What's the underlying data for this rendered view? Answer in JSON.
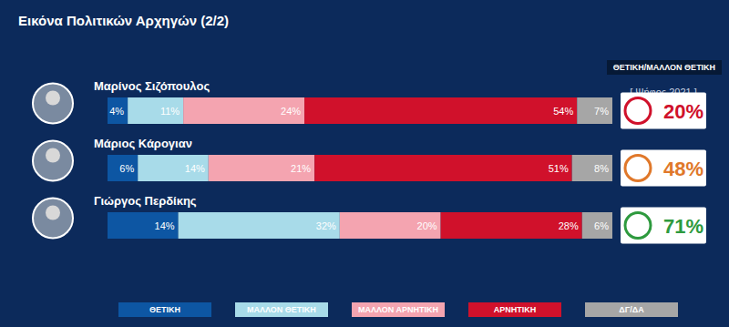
{
  "chart_data": {
    "type": "bar",
    "title": "Εικόνα Πολιτικών Αρχηγών (2/2)",
    "orientation": "horizontal",
    "stacked": true,
    "data_labels": true,
    "tick_labels": false,
    "categories": [
      "Μαρίνος Σιζόπουλος",
      "Μάριος Κάρογιαν",
      "Γιώργος Περδίκης"
    ],
    "xlim": [
      0,
      100
    ],
    "xticks": [
      0,
      100
    ],
    "legend": "bottom",
    "series": [
      {
        "name": "ΘΕΤΙΚΗ",
        "color": "#0d56a3",
        "values": [
          4,
          6,
          14
        ],
        "value_labels": [
          "4%",
          "6%",
          "14%"
        ]
      },
      {
        "name": "ΜΑΛΛΟΝ ΘΕΤΙΚΗ",
        "color": "#a8dbe9",
        "values": [
          11,
          14,
          32
        ],
        "value_labels": [
          "11%",
          "14%",
          "32%"
        ]
      },
      {
        "name": "ΜΑΛΛΟΝ ΑΡΝΗΤΙΚΗ",
        "color": "#f4a4b0",
        "values": [
          24,
          21,
          20
        ],
        "value_labels": [
          "24%",
          "21%",
          "20%"
        ]
      },
      {
        "name": "ΑΡΝΗΤΙΚΗ",
        "color": "#d0112b",
        "values": [
          54,
          51,
          28
        ],
        "value_labels": [
          "54%",
          "51%",
          "28%"
        ]
      },
      {
        "name": "ΔΓ/ΔΑ",
        "color": "#a6a6a6",
        "values": [
          7,
          8,
          6
        ],
        "value_labels": [
          "7%",
          "8%",
          "6%"
        ]
      }
    ],
    "vote_2021": {
      "header": "ΘΕΤΙΚΗ/ΜΑΛΛΟΝ ΘΕΤΙΚΗ",
      "title": "[ Ψήφος 2021 ]",
      "values": [
        20,
        48,
        71
      ],
      "value_labels": [
        "20%",
        "48%",
        "71%"
      ],
      "colors": [
        "#d0112b",
        "#e0782a",
        "#2e9a3e"
      ]
    }
  }
}
